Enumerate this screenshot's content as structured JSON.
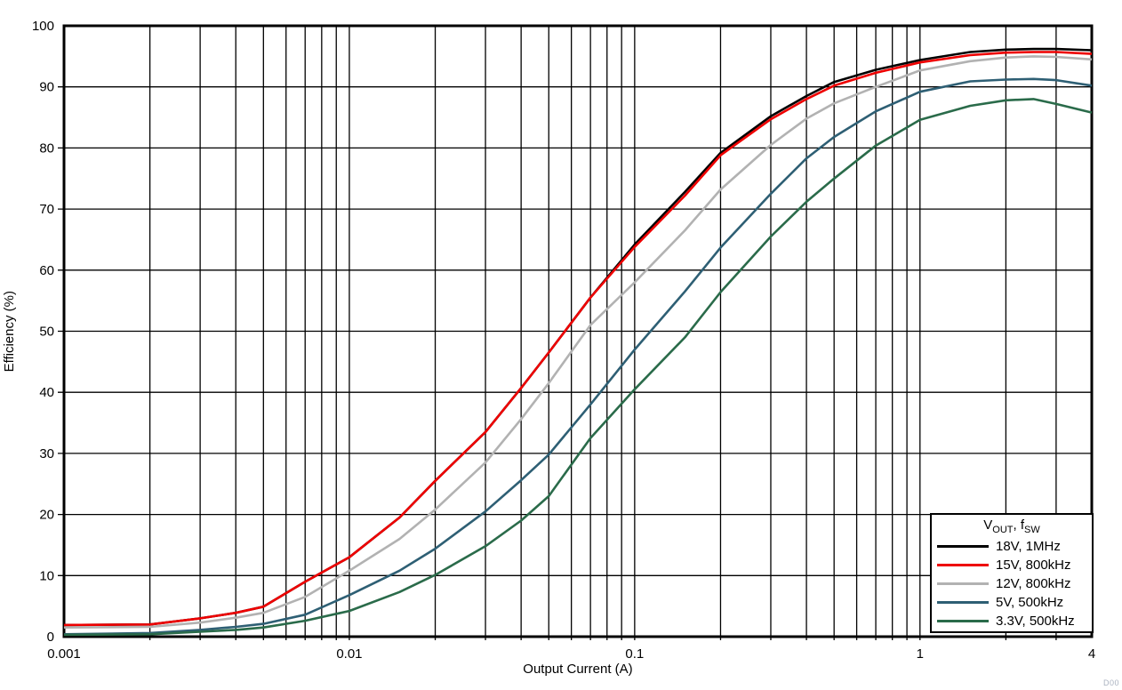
{
  "figure": {
    "watermark": "D00"
  },
  "chart_data": {
    "type": "line",
    "title": "",
    "xlabel": "Output Current (A)",
    "ylabel": "Efficiency (%)",
    "x_scale": "log",
    "xlim": [
      0.001,
      4
    ],
    "ylim": [
      0,
      100
    ],
    "x_ticks": [
      0.001,
      0.01,
      0.1,
      1,
      4
    ],
    "x_tick_labels": [
      "0.001",
      "0.01",
      "0.1",
      "1",
      "4"
    ],
    "y_ticks": [
      0,
      10,
      20,
      30,
      40,
      50,
      60,
      70,
      80,
      90,
      100
    ],
    "grid": {
      "color": "#000000",
      "horizontal": "major every 10%",
      "vertical": "log decades with minor lines 2-9 per decade"
    },
    "legend": {
      "position": "bottom-right",
      "title": {
        "pre": "V",
        "sub1": "OUT",
        "mid": ", f",
        "sub2": "SW"
      }
    },
    "series": [
      {
        "id": "18v-1mhz",
        "name": "18V, 1MHz",
        "color": "#000000",
        "points": [
          [
            0.001,
            1.9
          ],
          [
            0.002,
            2.0
          ],
          [
            0.003,
            3.0
          ],
          [
            0.004,
            3.9
          ],
          [
            0.005,
            4.9
          ],
          [
            0.007,
            9.0
          ],
          [
            0.01,
            13.0
          ],
          [
            0.015,
            19.5
          ],
          [
            0.02,
            25.5
          ],
          [
            0.03,
            33.5
          ],
          [
            0.04,
            40.7
          ],
          [
            0.05,
            46.5
          ],
          [
            0.07,
            55.5
          ],
          [
            0.1,
            64.2
          ],
          [
            0.15,
            72.8
          ],
          [
            0.2,
            79.2
          ],
          [
            0.3,
            85.2
          ],
          [
            0.4,
            88.5
          ],
          [
            0.5,
            90.8
          ],
          [
            0.7,
            92.8
          ],
          [
            1,
            94.4
          ],
          [
            1.5,
            95.7
          ],
          [
            2,
            96.1
          ],
          [
            2.5,
            96.2
          ],
          [
            3,
            96.2
          ],
          [
            4,
            96.0
          ]
        ]
      },
      {
        "id": "15v-800khz",
        "name": "15V, 800kHz",
        "color": "#ee0000",
        "points": [
          [
            0.001,
            1.9
          ],
          [
            0.002,
            2.0
          ],
          [
            0.003,
            3.0
          ],
          [
            0.004,
            3.9
          ],
          [
            0.005,
            4.9
          ],
          [
            0.007,
            9.0
          ],
          [
            0.01,
            13.0
          ],
          [
            0.015,
            19.5
          ],
          [
            0.02,
            25.5
          ],
          [
            0.03,
            33.5
          ],
          [
            0.04,
            40.7
          ],
          [
            0.05,
            46.5
          ],
          [
            0.07,
            55.5
          ],
          [
            0.1,
            63.8
          ],
          [
            0.15,
            72.2
          ],
          [
            0.2,
            78.8
          ],
          [
            0.3,
            84.7
          ],
          [
            0.4,
            88.0
          ],
          [
            0.5,
            90.2
          ],
          [
            0.7,
            92.3
          ],
          [
            1,
            94.0
          ],
          [
            1.5,
            95.2
          ],
          [
            2,
            95.6
          ],
          [
            2.5,
            95.7
          ],
          [
            3,
            95.7
          ],
          [
            4,
            95.4
          ]
        ]
      },
      {
        "id": "12v-800khz",
        "name": "12V, 800kHz",
        "color": "#b2b2b2",
        "points": [
          [
            0.001,
            1.5
          ],
          [
            0.002,
            1.6
          ],
          [
            0.003,
            2.3
          ],
          [
            0.004,
            3.1
          ],
          [
            0.005,
            3.9
          ],
          [
            0.007,
            6.5
          ],
          [
            0.01,
            10.8
          ],
          [
            0.015,
            16.0
          ],
          [
            0.02,
            20.8
          ],
          [
            0.03,
            28.5
          ],
          [
            0.04,
            35.6
          ],
          [
            0.05,
            41.5
          ],
          [
            0.07,
            51.0
          ],
          [
            0.1,
            58.0
          ],
          [
            0.15,
            66.5
          ],
          [
            0.2,
            73.2
          ],
          [
            0.3,
            80.5
          ],
          [
            0.4,
            84.8
          ],
          [
            0.5,
            87.3
          ],
          [
            0.7,
            90.0
          ],
          [
            1,
            92.7
          ],
          [
            1.5,
            94.2
          ],
          [
            2,
            94.8
          ],
          [
            2.5,
            95.0
          ],
          [
            3,
            94.9
          ],
          [
            4,
            94.5
          ]
        ]
      },
      {
        "id": "5v-500khz",
        "name": "5V, 500kHz",
        "color": "#2e5f74",
        "points": [
          [
            0.001,
            0.4
          ],
          [
            0.002,
            0.6
          ],
          [
            0.003,
            1.1
          ],
          [
            0.004,
            1.6
          ],
          [
            0.005,
            2.1
          ],
          [
            0.007,
            3.6
          ],
          [
            0.01,
            6.8
          ],
          [
            0.015,
            10.8
          ],
          [
            0.02,
            14.4
          ],
          [
            0.03,
            20.5
          ],
          [
            0.04,
            25.6
          ],
          [
            0.05,
            29.8
          ],
          [
            0.07,
            38.0
          ],
          [
            0.1,
            47.0
          ],
          [
            0.15,
            56.5
          ],
          [
            0.2,
            63.7
          ],
          [
            0.3,
            72.5
          ],
          [
            0.4,
            78.3
          ],
          [
            0.5,
            81.8
          ],
          [
            0.7,
            86.0
          ],
          [
            1,
            89.2
          ],
          [
            1.5,
            90.9
          ],
          [
            2,
            91.2
          ],
          [
            2.5,
            91.3
          ],
          [
            3,
            91.1
          ],
          [
            4,
            90.2
          ]
        ]
      },
      {
        "id": "3v3-500khz",
        "name": "3.3V, 500kHz",
        "color": "#2a6b4a",
        "points": [
          [
            0.001,
            0.3
          ],
          [
            0.002,
            0.4
          ],
          [
            0.003,
            0.8
          ],
          [
            0.004,
            1.1
          ],
          [
            0.005,
            1.5
          ],
          [
            0.007,
            2.6
          ],
          [
            0.01,
            4.2
          ],
          [
            0.015,
            7.3
          ],
          [
            0.02,
            10.1
          ],
          [
            0.03,
            14.8
          ],
          [
            0.04,
            19.0
          ],
          [
            0.05,
            23.0
          ],
          [
            0.07,
            32.5
          ],
          [
            0.1,
            40.5
          ],
          [
            0.15,
            49.0
          ],
          [
            0.2,
            56.4
          ],
          [
            0.3,
            65.5
          ],
          [
            0.4,
            71.2
          ],
          [
            0.5,
            75.0
          ],
          [
            0.7,
            80.4
          ],
          [
            1,
            84.6
          ],
          [
            1.5,
            86.9
          ],
          [
            2,
            87.8
          ],
          [
            2.5,
            88.0
          ],
          [
            3,
            87.2
          ],
          [
            4,
            85.8
          ]
        ]
      }
    ]
  }
}
